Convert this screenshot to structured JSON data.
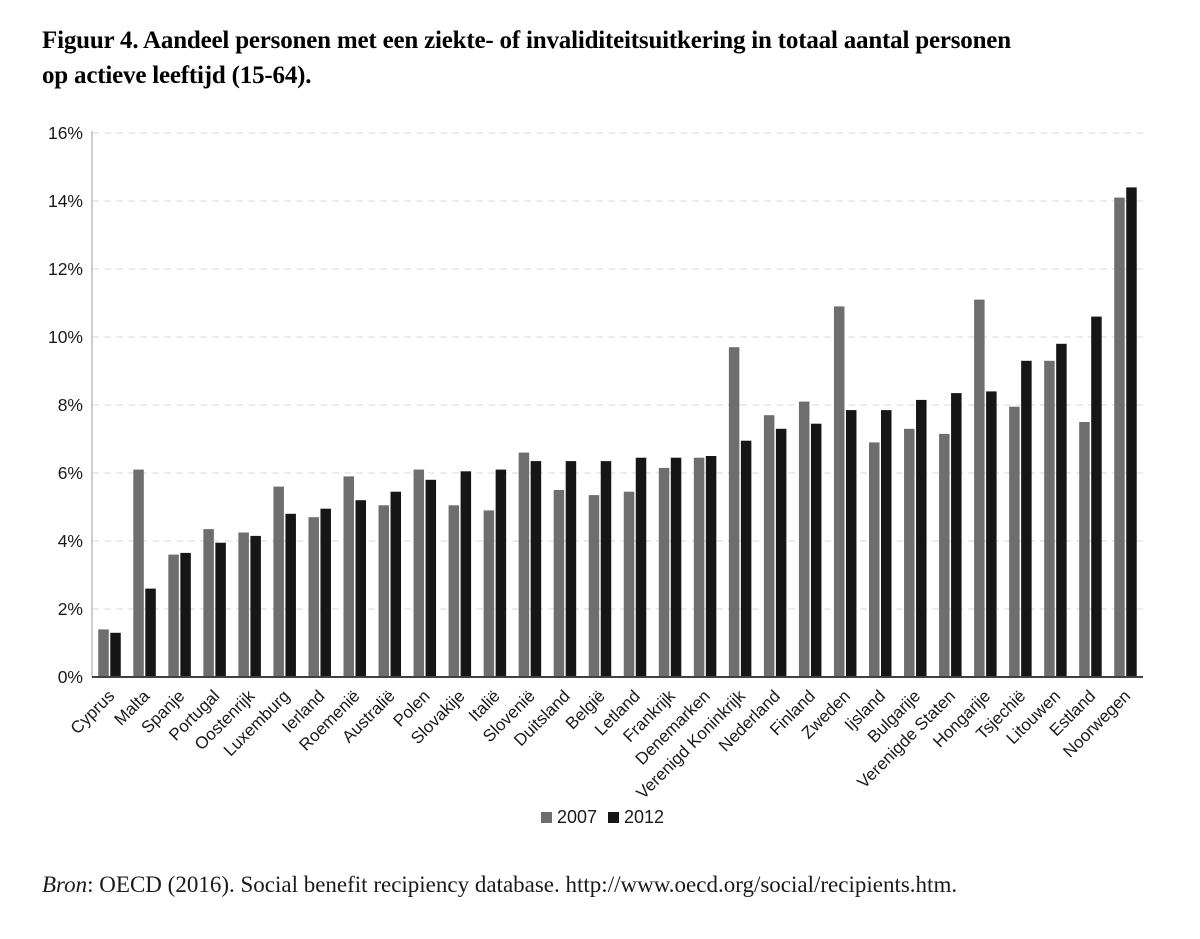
{
  "figure": {
    "title_line1": "Figuur 4. Aandeel personen met een ziekte- of invaliditeitsuitkering in totaal aantal personen",
    "title_line2": "op actieve leeftijd (15-64).",
    "source_prefix_italic": "Bron",
    "source_rest": ": OECD (2016). Social benefit recipiency database. http://www.oecd.org/social/recipients.htm."
  },
  "chart_data": {
    "type": "bar",
    "title": "Figuur 4. Aandeel personen met een ziekte- of invaliditeitsuitkering in totaal aantal personen op actieve leeftijd (15-64).",
    "xlabel": "",
    "ylabel": "",
    "ylim": [
      0,
      16
    ],
    "y_ticks": [
      "0%",
      "2%",
      "4%",
      "6%",
      "8%",
      "10%",
      "12%",
      "14%",
      "16%"
    ],
    "grid": "horizontal-dashed",
    "legend_position": "bottom-center",
    "categories": [
      "Cyprus",
      "Malta",
      "Spanje",
      "Portugal",
      "Oostenrijk",
      "Luxemburg",
      "Ierland",
      "Roemenië",
      "Australië",
      "Polen",
      "Slovakije",
      "Italië",
      "Slovenië",
      "Duitsland",
      "België",
      "Letland",
      "Frankrijk",
      "Denemarken",
      "Verenigd Koninkrijk",
      "Nederland",
      "Finland",
      "Zweden",
      "Ijsland",
      "Bulgarije",
      "Verenigde Staten",
      "Hongarije",
      "Tsjechië",
      "Litouwen",
      "Estland",
      "Noorwegen"
    ],
    "series": [
      {
        "name": "2007",
        "color": "#6e6e6e",
        "values": [
          1.4,
          6.1,
          3.6,
          4.35,
          4.25,
          5.6,
          4.7,
          5.9,
          5.05,
          6.1,
          5.05,
          4.9,
          6.6,
          5.5,
          5.35,
          5.45,
          6.15,
          6.45,
          9.7,
          7.7,
          8.1,
          10.9,
          6.9,
          7.3,
          7.15,
          11.1,
          7.95,
          9.3,
          7.5,
          14.1
        ]
      },
      {
        "name": "2012",
        "color": "#161616",
        "values": [
          1.3,
          2.6,
          3.65,
          3.95,
          4.15,
          4.8,
          4.95,
          5.2,
          5.45,
          5.8,
          6.05,
          6.1,
          6.35,
          6.35,
          6.35,
          6.45,
          6.45,
          6.5,
          6.95,
          7.3,
          7.45,
          7.85,
          7.85,
          8.15,
          8.35,
          8.4,
          9.3,
          9.8,
          10.6,
          14.4
        ]
      }
    ]
  },
  "colors": {
    "background": "#ffffff",
    "gridline": "#d9d9d9",
    "y_axis_line": "#b3b3b3",
    "x_axis_line": "#404040",
    "text": "#1a1a1a",
    "series_2007": "#6e6e6e",
    "series_2012": "#161616"
  }
}
